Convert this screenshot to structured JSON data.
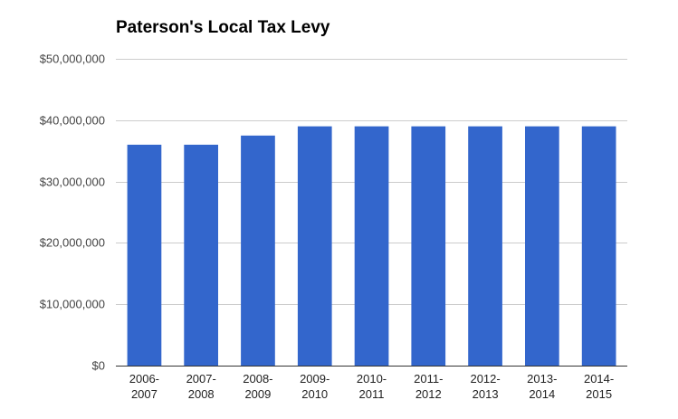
{
  "chart_data": {
    "type": "bar",
    "title": "Paterson's Local Tax Levy",
    "xlabel": "",
    "ylabel": "",
    "categories": [
      [
        "2006-",
        "2007"
      ],
      [
        "2007-",
        "2008"
      ],
      [
        "2008-",
        "2009"
      ],
      [
        "2009-",
        "2010"
      ],
      [
        "2010-",
        "2011"
      ],
      [
        "2011-",
        "2012"
      ],
      [
        "2012-",
        "2013"
      ],
      [
        "2013-",
        "2014"
      ],
      [
        "2014-",
        "2015"
      ]
    ],
    "values": [
      36000000,
      36000000,
      37500000,
      39000000,
      39000000,
      39000000,
      39000000,
      39000000,
      39000000
    ],
    "ylim": [
      0,
      50000000
    ],
    "yticks": [
      0,
      10000000,
      20000000,
      30000000,
      40000000,
      50000000
    ],
    "ytick_labels": [
      "$0",
      "$10,000,000",
      "$20,000,000",
      "$30,000,000",
      "$40,000,000",
      "$50,000,000"
    ],
    "grid": true,
    "legend": "none",
    "bar_color": "#3366cc",
    "grid_color": "#cccccc",
    "axis_color": "#333333"
  }
}
